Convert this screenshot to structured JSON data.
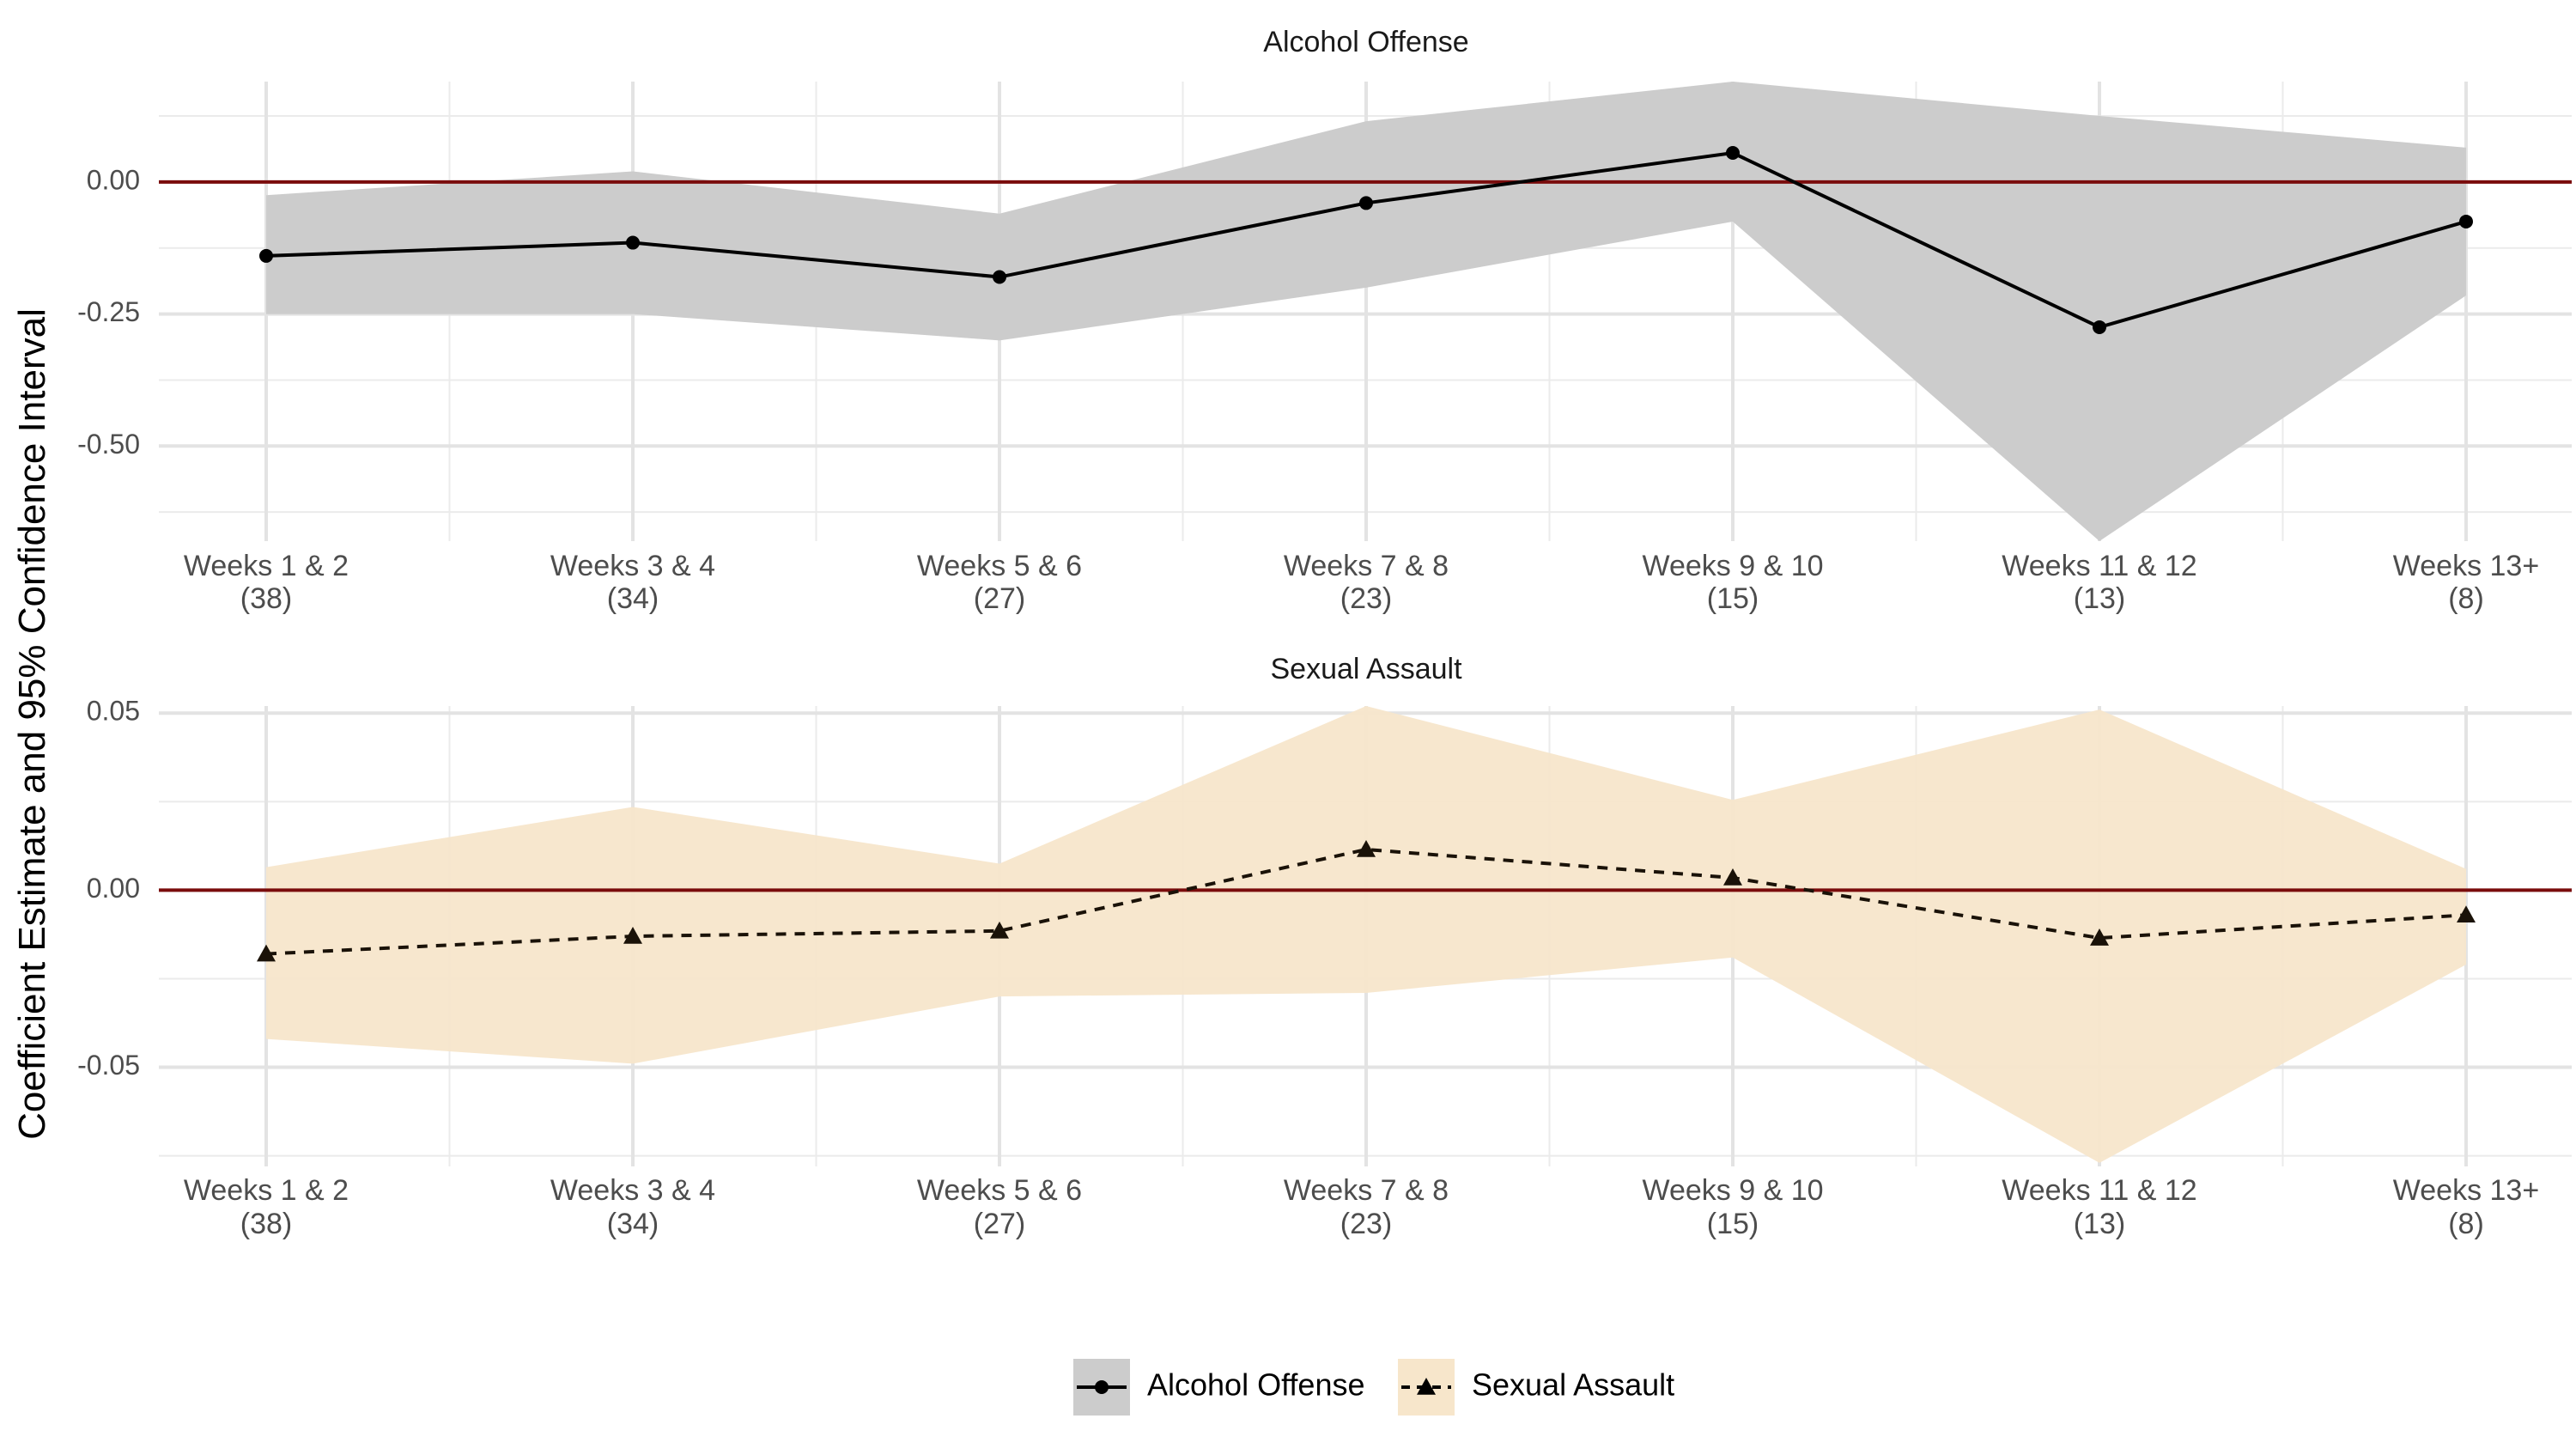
{
  "chart_data": {
    "type": "line",
    "ylabel": "Coefficient Estimate and 95% Confidence Interval",
    "categories": [
      {
        "label": "Weeks 1 & 2",
        "n": "(38)"
      },
      {
        "label": "Weeks 3 & 4",
        "n": "(34)"
      },
      {
        "label": "Weeks 5 & 6",
        "n": "(27)"
      },
      {
        "label": "Weeks 7 & 8",
        "n": "(23)"
      },
      {
        "label": "Weeks 9 & 10",
        "n": "(15)"
      },
      {
        "label": "Weeks 11 & 12",
        "n": "(13)"
      },
      {
        "label": "Weeks 13+",
        "n": "(8)"
      }
    ],
    "reference_line": 0,
    "reference_color": "#7a0c0c",
    "panels": [
      {
        "title": "Alcohol Offense",
        "series_name": "Alcohol Offense",
        "marker": "circle",
        "line_style": "solid",
        "ribbon_color": "#cccccc",
        "ylim": [
          -0.68,
          0.19
        ],
        "yticks": [
          {
            "v": 0,
            "label": "0.00"
          },
          {
            "v": -0.25,
            "label": "-0.25"
          },
          {
            "v": -0.5,
            "label": "-0.50"
          }
        ],
        "y_minor": [
          0.125,
          -0.125,
          -0.375,
          -0.625
        ],
        "values": [
          -0.14,
          -0.115,
          -0.18,
          -0.04,
          0.055,
          -0.275,
          -0.075
        ],
        "lower": [
          -0.25,
          -0.25,
          -0.3,
          -0.2,
          -0.075,
          -0.68,
          -0.215
        ],
        "upper": [
          -0.025,
          0.02,
          -0.06,
          0.115,
          0.19,
          0.125,
          0.065
        ]
      },
      {
        "title": "Sexual Assault",
        "series_name": "Sexual Assault",
        "marker": "triangle",
        "line_style": "dashed",
        "ribbon_color": "#f7e6cb",
        "ylim": [
          -0.078,
          0.052
        ],
        "yticks": [
          {
            "v": 0.05,
            "label": "0.05"
          },
          {
            "v": 0,
            "label": "0.00"
          },
          {
            "v": -0.05,
            "label": "-0.05"
          }
        ],
        "y_minor": [
          0.025,
          -0.025,
          -0.075
        ],
        "values": [
          -0.018,
          -0.013,
          -0.0115,
          0.0115,
          0.0035,
          -0.0135,
          -0.007
        ],
        "lower": [
          -0.042,
          -0.049,
          -0.03,
          -0.029,
          -0.019,
          -0.077,
          -0.021
        ],
        "upper": [
          0.0065,
          0.0235,
          0.0075,
          0.052,
          0.0255,
          0.051,
          0.006
        ]
      }
    ],
    "legend": {
      "position": "bottom",
      "items": [
        {
          "label": "Alcohol Offense",
          "marker": "circle",
          "line_style": "solid",
          "fill": "#cccccc"
        },
        {
          "label": "Sexual Assault",
          "marker": "triangle",
          "line_style": "dashed",
          "fill": "#f7e6cb"
        }
      ]
    }
  }
}
